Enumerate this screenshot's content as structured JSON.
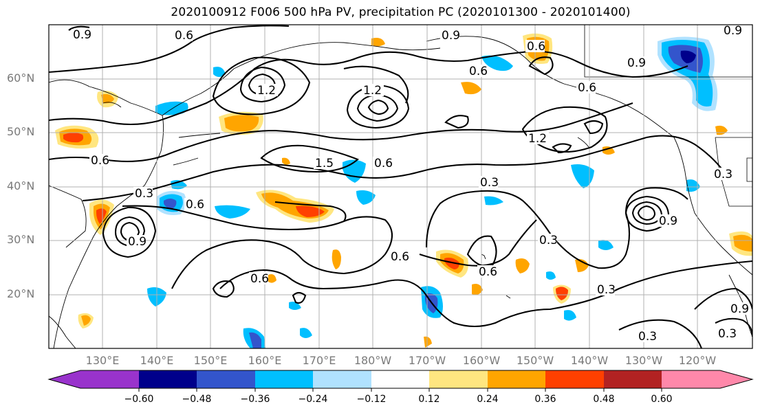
{
  "title": "2020100912 F006 500 hPa PV, precipitation PC (2020101300 - 2020101400)",
  "lat_labels": [
    "60°N",
    "50°N",
    "40°N",
    "30°N",
    "20°N"
  ],
  "lon_labels": [
    "130°E",
    "140°E",
    "150°E",
    "160°E",
    "170°E",
    "180°W",
    "170°W",
    "160°W",
    "150°W",
    "140°W",
    "130°W",
    "120°W"
  ],
  "contour_labels": [
    "0.9",
    "0.6",
    "0.3",
    "1.2",
    "1.5",
    "0.6",
    "0.3",
    "0.9",
    "1.2",
    "0.6",
    "0.3",
    "0.6",
    "0.3",
    "0.9",
    "0.3",
    "0.6",
    "0.3",
    "0.6",
    "0.3",
    "0.9",
    "0.6"
  ],
  "colorbar": {
    "tick_labels": [
      "−0.60",
      "−0.48",
      "−0.36",
      "−0.24",
      "−0.12",
      "0.12",
      "0.24",
      "0.36",
      "0.48",
      "0.60"
    ],
    "colors": [
      "#9933cc",
      "#00008b",
      "#3355cc",
      "#00bfff",
      "#b0e2ff",
      "#ffffff",
      "#ffe680",
      "#ffa500",
      "#ff4000",
      "#b22222",
      "#ff88aa"
    ]
  }
}
